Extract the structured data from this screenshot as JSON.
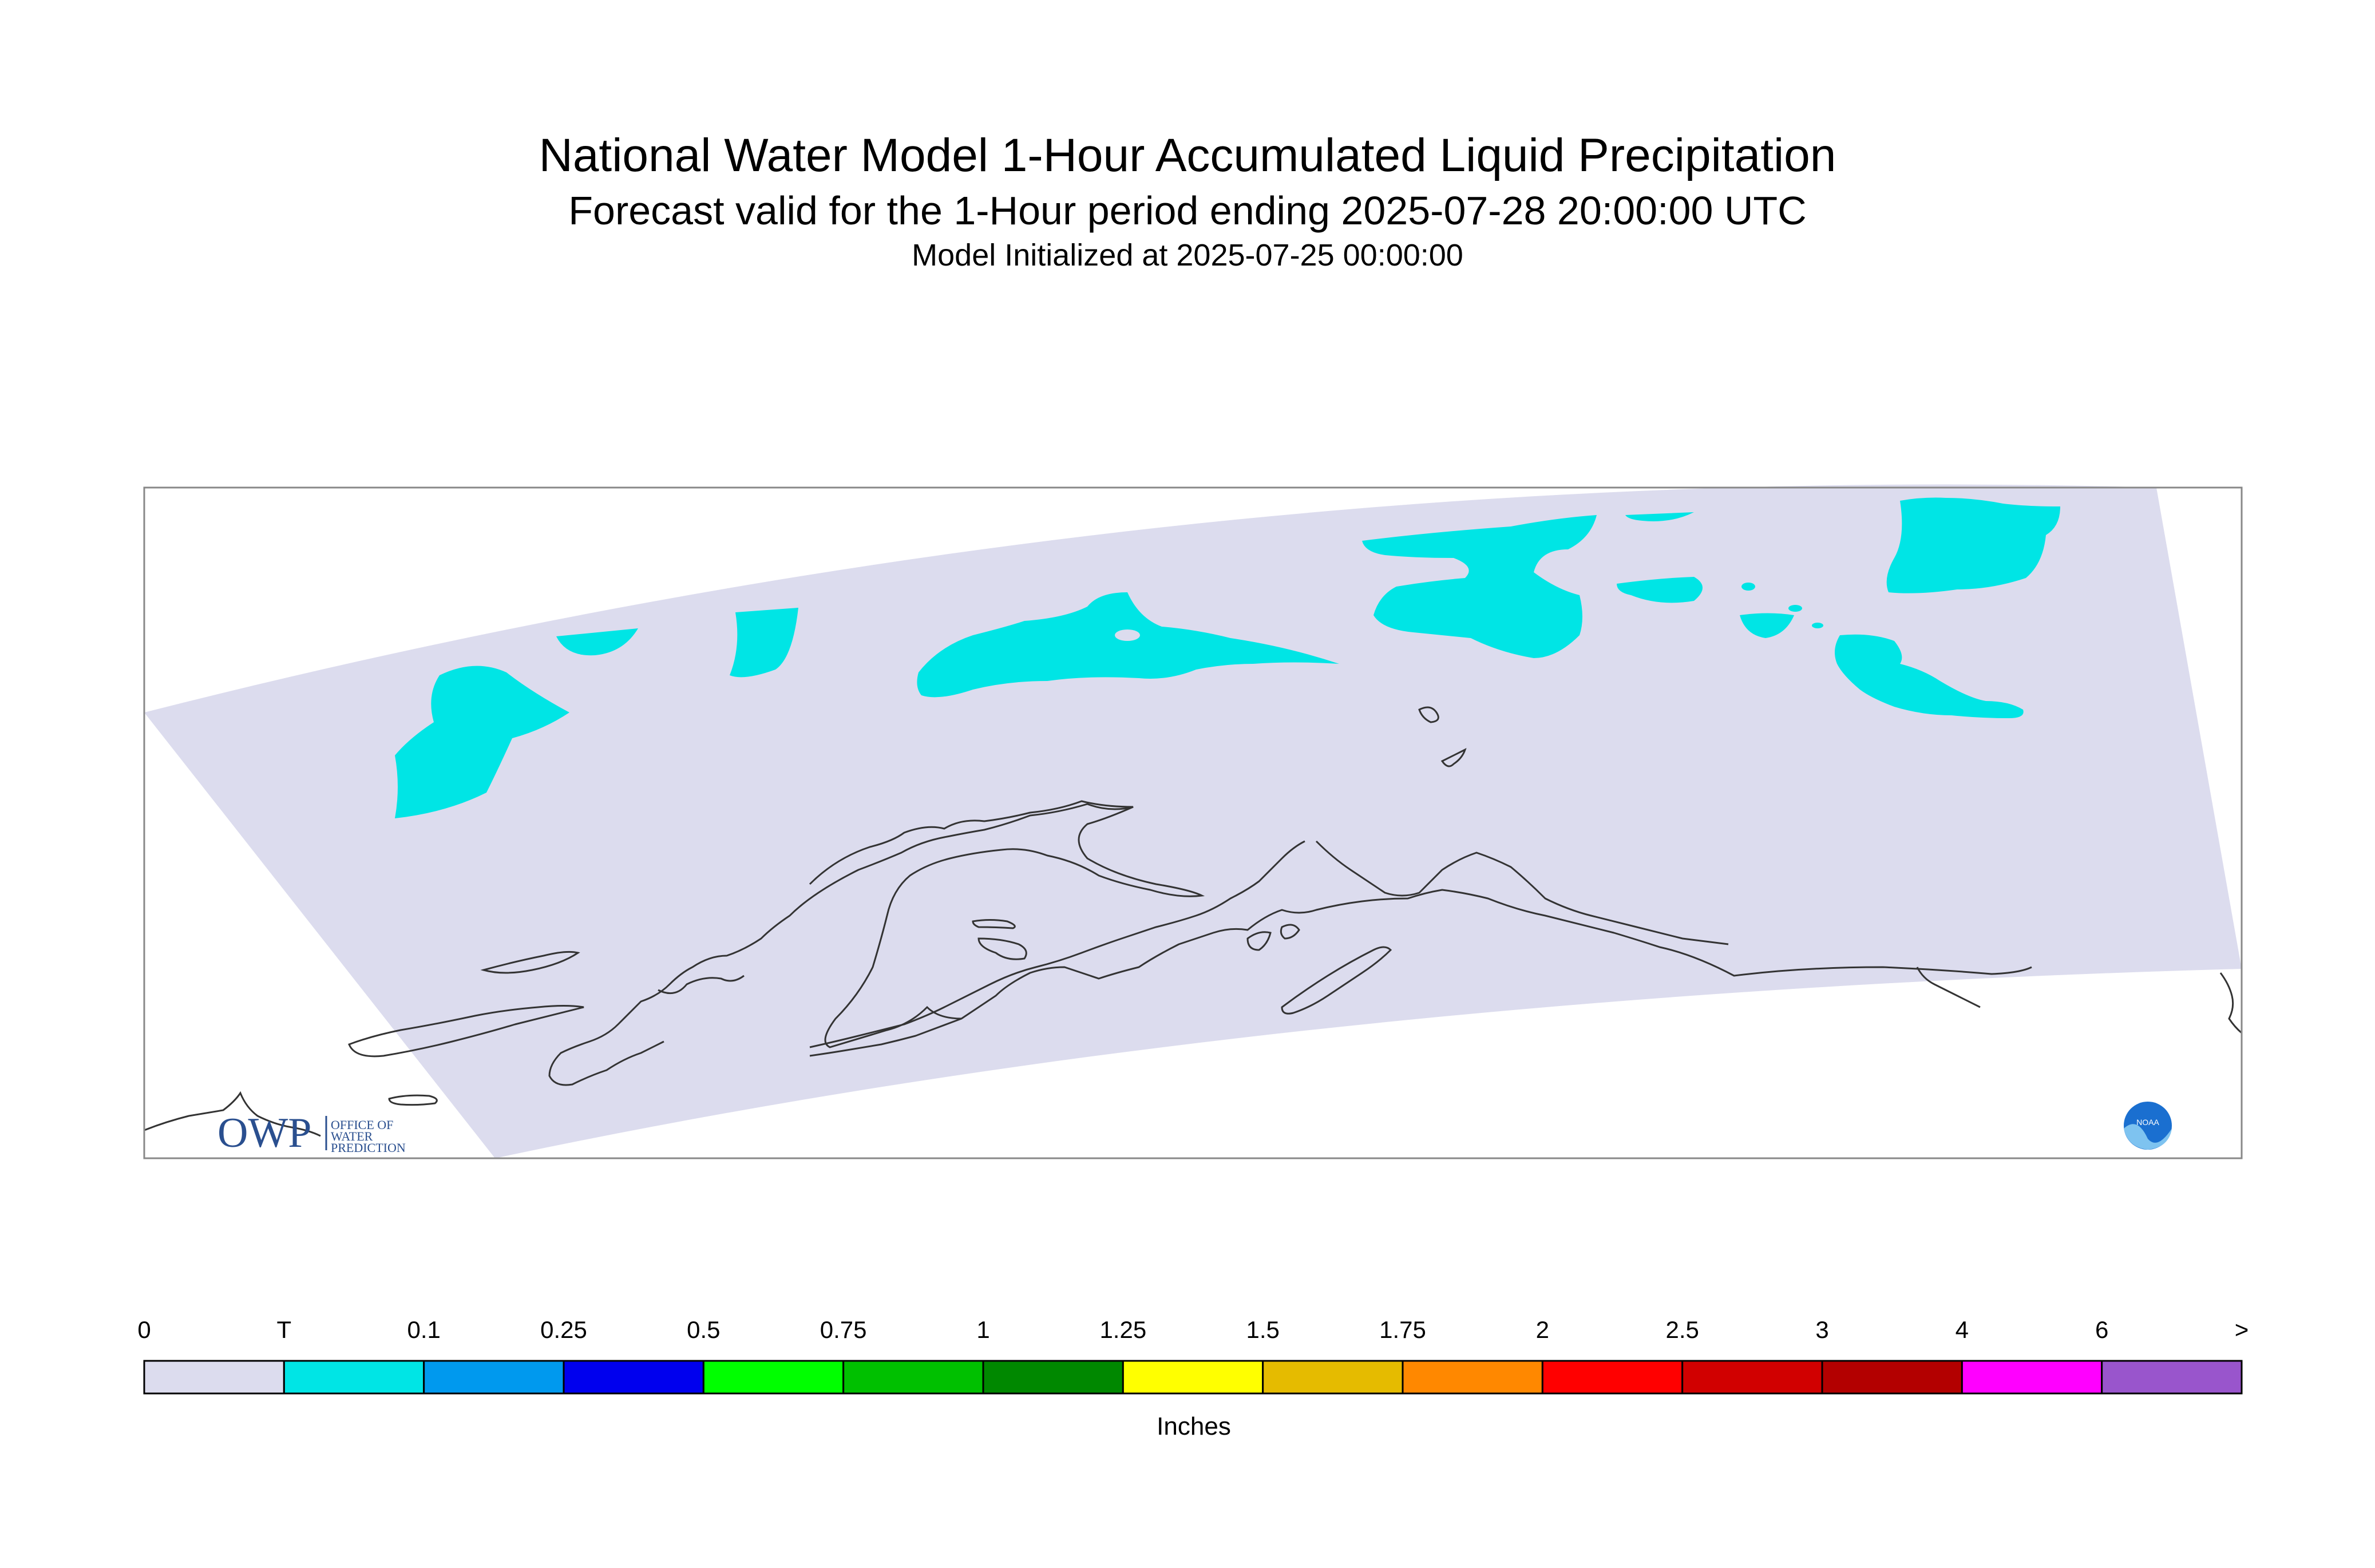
{
  "title": "National Water Model 1-Hour Accumulated Liquid Precipitation",
  "subtitle": "Forecast valid for the 1-Hour period ending 2025-07-28 20:00:00 UTC",
  "init_line": "Model Initialized at 2025-07-25 00:00:00",
  "logo": {
    "owp_letters": "OWP",
    "owp_text_lines": [
      "OFFICE OF",
      "WATER",
      "PREDICTION"
    ],
    "noaa_text": "NOAA"
  },
  "colorbar": {
    "units": "Inches",
    "labels": [
      "0",
      "T",
      "0.1",
      "0.25",
      "0.5",
      "0.75",
      "1",
      "1.25",
      "1.5",
      "1.75",
      "2",
      "2.5",
      "3",
      "4",
      "6",
      ">"
    ],
    "colors": [
      "#dcdcee",
      "#00e5e5",
      "#0099ee",
      "#0000ee",
      "#00ff00",
      "#00c000",
      "#008800",
      "#ffff00",
      "#e5bb00",
      "#ff8800",
      "#ff0000",
      "#d10000",
      "#b30000",
      "#ff00ff",
      "#9955cc"
    ]
  },
  "colors": {
    "no_precip_domain": "#dcdcee",
    "trace_precip": "#00e5e5",
    "coastline": "#333333",
    "frame": "#888888"
  }
}
